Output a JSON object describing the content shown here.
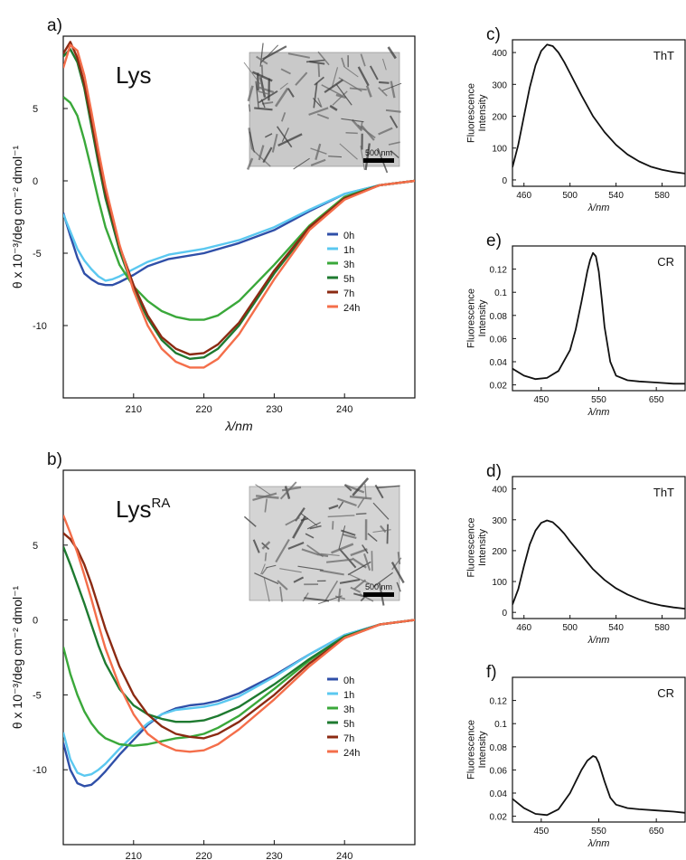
{
  "panels": [
    {
      "id": "a",
      "panel_label": "a)",
      "protein": "Lys",
      "protein_sup": "",
      "scale_bar": "500 nm",
      "inset_color": "#c9c9c9"
    },
    {
      "id": "b",
      "panel_label": "b)",
      "protein": "Lys",
      "protein_sup": "RA",
      "scale_bar": "500 nm",
      "inset_color": "#d4d4d4"
    },
    {
      "id": "c",
      "panel_label": "c)",
      "dye": "ThT"
    },
    {
      "id": "e",
      "panel_label": "e)",
      "dye": "CR"
    },
    {
      "id": "d",
      "panel_label": "d)",
      "dye": "ThT"
    },
    {
      "id": "f",
      "panel_label": "f)",
      "dye": "CR"
    }
  ],
  "chart_data": [
    {
      "panel": "a",
      "type": "line",
      "xlabel": "λ/nm",
      "ylabel": "θ x 10⁻³/deg cm⁻² dmol⁻¹",
      "xlim": [
        200,
        250
      ],
      "ylim": [
        -15,
        10
      ],
      "xticks": [
        210,
        220,
        230,
        240
      ],
      "yticks": [
        5,
        0,
        -5,
        -10
      ],
      "legend_position": "lower-right",
      "series": [
        {
          "name": "0h",
          "color": "#2f4fa8",
          "x": [
            200,
            201,
            202,
            203,
            204,
            205,
            206,
            207,
            208,
            210,
            212,
            215,
            220,
            225,
            230,
            235,
            240,
            245,
            250
          ],
          "y": [
            -2.2,
            -3.8,
            -5.3,
            -6.4,
            -6.8,
            -7.1,
            -7.2,
            -7.2,
            -7.0,
            -6.5,
            -5.9,
            -5.4,
            -5.0,
            -4.3,
            -3.4,
            -2.1,
            -0.9,
            -0.3,
            0
          ]
        },
        {
          "name": "1h",
          "color": "#5bc8f0",
          "x": [
            200,
            201,
            202,
            203,
            204,
            205,
            206,
            207,
            208,
            210,
            212,
            215,
            220,
            225,
            230,
            235,
            240,
            245,
            250
          ],
          "y": [
            -2.3,
            -3.5,
            -4.7,
            -5.5,
            -6.1,
            -6.6,
            -6.9,
            -6.8,
            -6.6,
            -6.1,
            -5.6,
            -5.1,
            -4.7,
            -4.1,
            -3.2,
            -2.0,
            -0.9,
            -0.3,
            0
          ]
        },
        {
          "name": "3h",
          "color": "#3aa83a",
          "x": [
            200,
            201,
            202,
            203,
            204,
            205,
            206,
            208,
            210,
            212,
            214,
            216,
            218,
            220,
            222,
            225,
            230,
            235,
            240,
            245,
            250
          ],
          "y": [
            5.8,
            5.4,
            4.5,
            2.8,
            0.8,
            -1.3,
            -3.2,
            -5.8,
            -7.3,
            -8.3,
            -9.0,
            -9.4,
            -9.6,
            -9.6,
            -9.3,
            -8.3,
            -5.8,
            -3.1,
            -1.1,
            -0.3,
            0
          ]
        },
        {
          "name": "5h",
          "color": "#1e7a30",
          "x": [
            200,
            201,
            202,
            203,
            204,
            205,
            206,
            208,
            210,
            212,
            214,
            216,
            218,
            220,
            222,
            225,
            230,
            235,
            240,
            245,
            250
          ],
          "y": [
            8.6,
            9.1,
            8.2,
            6.4,
            3.8,
            1.2,
            -1.2,
            -4.8,
            -7.5,
            -9.5,
            -11.0,
            -11.9,
            -12.3,
            -12.2,
            -11.6,
            -10.0,
            -6.4,
            -3.3,
            -1.2,
            -0.3,
            0
          ]
        },
        {
          "name": "7h",
          "color": "#8b2a12",
          "x": [
            200,
            201,
            202,
            203,
            204,
            205,
            206,
            208,
            210,
            212,
            214,
            216,
            218,
            220,
            222,
            225,
            230,
            235,
            240,
            245,
            250
          ],
          "y": [
            8.8,
            9.6,
            8.5,
            6.7,
            4.2,
            1.6,
            -0.8,
            -4.5,
            -7.2,
            -9.3,
            -10.8,
            -11.6,
            -12.0,
            -11.9,
            -11.3,
            -9.8,
            -6.2,
            -3.2,
            -1.2,
            -0.3,
            0
          ]
        },
        {
          "name": "24h",
          "color": "#f46e4a",
          "x": [
            200,
            201,
            202,
            203,
            204,
            205,
            206,
            208,
            210,
            212,
            214,
            216,
            218,
            220,
            222,
            225,
            230,
            235,
            240,
            245,
            250
          ],
          "y": [
            7.8,
            9.4,
            9.0,
            7.3,
            4.8,
            2.1,
            -0.4,
            -4.4,
            -7.6,
            -10.0,
            -11.6,
            -12.5,
            -12.9,
            -12.9,
            -12.3,
            -10.6,
            -6.8,
            -3.4,
            -1.3,
            -0.3,
            0
          ]
        }
      ]
    },
    {
      "panel": "b",
      "type": "line",
      "xlabel": "λ/nm",
      "ylabel": "θ x 10⁻³/deg cm⁻² dmol⁻¹",
      "xlim": [
        200,
        250
      ],
      "ylim": [
        -15,
        10
      ],
      "xticks": [
        210,
        220,
        230,
        240
      ],
      "yticks": [
        5,
        0,
        -5,
        -10
      ],
      "legend_position": "lower-right",
      "series": [
        {
          "name": "0h",
          "color": "#2f4fa8",
          "x": [
            200,
            201,
            202,
            203,
            204,
            205,
            206,
            208,
            210,
            212,
            214,
            216,
            218,
            220,
            222,
            225,
            230,
            235,
            240,
            245,
            250
          ],
          "y": [
            -8.2,
            -10.0,
            -10.9,
            -11.1,
            -11.0,
            -10.6,
            -10.1,
            -9.0,
            -8.0,
            -7.0,
            -6.3,
            -5.9,
            -5.7,
            -5.6,
            -5.4,
            -4.9,
            -3.7,
            -2.3,
            -1.0,
            -0.3,
            0
          ]
        },
        {
          "name": "1h",
          "color": "#5bc8f0",
          "x": [
            200,
            201,
            202,
            203,
            204,
            205,
            206,
            208,
            210,
            212,
            214,
            216,
            218,
            220,
            222,
            225,
            230,
            235,
            240,
            245,
            250
          ],
          "y": [
            -7.5,
            -9.3,
            -10.2,
            -10.4,
            -10.3,
            -10.0,
            -9.6,
            -8.6,
            -7.7,
            -6.9,
            -6.3,
            -6.0,
            -5.9,
            -5.8,
            -5.6,
            -5.1,
            -3.8,
            -2.3,
            -1.0,
            -0.3,
            0
          ]
        },
        {
          "name": "3h",
          "color": "#3aa83a",
          "x": [
            200,
            201,
            202,
            203,
            204,
            205,
            206,
            208,
            210,
            212,
            214,
            216,
            218,
            220,
            222,
            225,
            230,
            235,
            240,
            245,
            250
          ],
          "y": [
            -1.8,
            -3.6,
            -5.0,
            -6.1,
            -6.9,
            -7.5,
            -7.9,
            -8.3,
            -8.4,
            -8.3,
            -8.1,
            -7.9,
            -7.8,
            -7.6,
            -7.2,
            -6.4,
            -4.6,
            -2.7,
            -1.1,
            -0.3,
            0
          ]
        },
        {
          "name": "5h",
          "color": "#1e7a30",
          "x": [
            200,
            201,
            202,
            203,
            204,
            205,
            206,
            208,
            210,
            212,
            214,
            216,
            218,
            220,
            222,
            225,
            230,
            235,
            240,
            245,
            250
          ],
          "y": [
            4.9,
            3.7,
            2.4,
            1.1,
            -0.3,
            -1.7,
            -2.9,
            -4.6,
            -5.7,
            -6.3,
            -6.6,
            -6.8,
            -6.8,
            -6.7,
            -6.4,
            -5.8,
            -4.3,
            -2.6,
            -1.1,
            -0.3,
            0
          ]
        },
        {
          "name": "7h",
          "color": "#8b2a12",
          "x": [
            200,
            201,
            202,
            203,
            204,
            205,
            206,
            208,
            210,
            212,
            214,
            216,
            218,
            220,
            222,
            225,
            230,
            235,
            240,
            245,
            250
          ],
          "y": [
            5.8,
            5.4,
            4.7,
            3.7,
            2.4,
            0.9,
            -0.6,
            -3.1,
            -5.0,
            -6.3,
            -7.1,
            -7.6,
            -7.8,
            -7.9,
            -7.6,
            -6.8,
            -5.0,
            -2.9,
            -1.2,
            -0.3,
            0
          ]
        },
        {
          "name": "24h",
          "color": "#f46e4a",
          "x": [
            200,
            201,
            202,
            203,
            204,
            205,
            206,
            208,
            210,
            212,
            214,
            216,
            218,
            220,
            222,
            225,
            230,
            235,
            240,
            245,
            250
          ],
          "y": [
            7.0,
            5.8,
            4.5,
            3.0,
            1.4,
            -0.3,
            -1.9,
            -4.4,
            -6.3,
            -7.6,
            -8.3,
            -8.7,
            -8.8,
            -8.7,
            -8.3,
            -7.3,
            -5.3,
            -3.1,
            -1.2,
            -0.3,
            0
          ]
        }
      ]
    },
    {
      "panel": "c",
      "type": "line",
      "xlabel": "λ/nm",
      "ylabel": "Fluorescence Intensity",
      "xlim": [
        450,
        600
      ],
      "ylim": [
        -20,
        440
      ],
      "xticks": [
        460,
        500,
        540,
        580
      ],
      "yticks": [
        0,
        100,
        200,
        300,
        400
      ],
      "series": [
        {
          "name": "",
          "color": "#111111",
          "x": [
            450,
            455,
            460,
            465,
            470,
            475,
            480,
            485,
            490,
            495,
            500,
            510,
            520,
            530,
            540,
            550,
            560,
            570,
            580,
            590,
            600
          ],
          "y": [
            40,
            110,
            200,
            290,
            360,
            405,
            425,
            420,
            400,
            370,
            335,
            265,
            200,
            150,
            110,
            80,
            58,
            42,
            32,
            25,
            20
          ]
        }
      ]
    },
    {
      "panel": "e",
      "type": "line",
      "xlabel": "λ/nm",
      "ylabel": "Fluorescence Intensity",
      "xlim": [
        400,
        700
      ],
      "ylim": [
        0.015,
        0.14
      ],
      "xticks": [
        450,
        550,
        650
      ],
      "yticks": [
        0.02,
        0.04,
        0.06,
        0.08,
        0.1,
        0.12
      ],
      "series": [
        {
          "name": "",
          "color": "#111111",
          "x": [
            400,
            420,
            440,
            460,
            480,
            500,
            510,
            520,
            530,
            535,
            540,
            545,
            550,
            555,
            560,
            570,
            580,
            600,
            620,
            650,
            680,
            700
          ],
          "y": [
            0.034,
            0.028,
            0.025,
            0.026,
            0.032,
            0.05,
            0.068,
            0.092,
            0.118,
            0.128,
            0.134,
            0.131,
            0.118,
            0.095,
            0.07,
            0.04,
            0.028,
            0.024,
            0.023,
            0.022,
            0.021,
            0.021
          ]
        }
      ]
    },
    {
      "panel": "d",
      "type": "line",
      "xlabel": "λ/nm",
      "ylabel": "Fluorescence Intensity",
      "xlim": [
        450,
        600
      ],
      "ylim": [
        -20,
        440
      ],
      "xticks": [
        460,
        500,
        540,
        580
      ],
      "yticks": [
        0,
        100,
        200,
        300,
        400
      ],
      "series": [
        {
          "name": "",
          "color": "#111111",
          "x": [
            450,
            455,
            460,
            465,
            470,
            475,
            480,
            485,
            490,
            495,
            500,
            510,
            520,
            530,
            540,
            550,
            560,
            570,
            580,
            590,
            600
          ],
          "y": [
            25,
            75,
            150,
            220,
            265,
            290,
            298,
            292,
            275,
            255,
            230,
            185,
            140,
            105,
            78,
            58,
            42,
            30,
            22,
            16,
            12
          ]
        }
      ]
    },
    {
      "panel": "f",
      "type": "line",
      "xlabel": "λ/nm",
      "ylabel": "Fluorescence Intensity",
      "xlim": [
        400,
        700
      ],
      "ylim": [
        0.015,
        0.14
      ],
      "xticks": [
        450,
        550,
        650
      ],
      "yticks": [
        0.02,
        0.04,
        0.06,
        0.08,
        0.1,
        0.12
      ],
      "series": [
        {
          "name": "",
          "color": "#111111",
          "x": [
            400,
            420,
            440,
            460,
            480,
            500,
            510,
            520,
            530,
            540,
            545,
            550,
            560,
            570,
            580,
            600,
            620,
            650,
            680,
            700
          ],
          "y": [
            0.035,
            0.027,
            0.022,
            0.021,
            0.026,
            0.04,
            0.05,
            0.06,
            0.068,
            0.072,
            0.071,
            0.066,
            0.05,
            0.036,
            0.03,
            0.027,
            0.026,
            0.025,
            0.024,
            0.023
          ]
        }
      ]
    }
  ]
}
